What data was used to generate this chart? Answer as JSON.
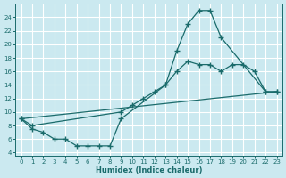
{
  "xlabel": "Humidex (Indice chaleur)",
  "bg_color": "#cbe9f0",
  "grid_color": "#ffffff",
  "line_color": "#1a6b6b",
  "x_ticks": [
    0,
    1,
    2,
    3,
    4,
    5,
    6,
    7,
    8,
    9,
    10,
    11,
    12,
    13,
    14,
    15,
    16,
    17,
    18,
    19,
    20,
    21,
    22,
    23
  ],
  "y_ticks": [
    4,
    6,
    8,
    10,
    12,
    14,
    16,
    18,
    20,
    22,
    24
  ],
  "ylim": [
    3.5,
    26.0
  ],
  "xlim": [
    -0.5,
    23.5
  ],
  "curve_top": {
    "x": [
      0,
      1,
      2,
      3,
      4,
      5,
      6,
      7,
      8,
      9,
      13,
      14,
      15,
      16,
      17,
      18,
      22,
      23
    ],
    "y": [
      9,
      7.5,
      7,
      6,
      6,
      5,
      5,
      5,
      5,
      9,
      14,
      19,
      23,
      25,
      25,
      21,
      13,
      13
    ]
  },
  "curve_mid": {
    "x": [
      0,
      1,
      9,
      10,
      11,
      12,
      13,
      14,
      15,
      16,
      17,
      18,
      19,
      20,
      21,
      22,
      23
    ],
    "y": [
      9,
      8,
      10,
      11,
      12,
      13,
      14,
      16,
      17.5,
      17,
      17,
      16,
      17,
      17,
      16,
      13,
      13
    ]
  },
  "curve_bot": {
    "x": [
      0,
      23
    ],
    "y": [
      9,
      13
    ]
  },
  "markers_top": {
    "x": [
      0,
      1,
      2,
      3,
      4,
      5,
      6,
      7,
      8,
      9,
      13,
      14,
      15,
      16,
      17,
      18,
      22,
      23
    ],
    "y": [
      9,
      7.5,
      7,
      6,
      6,
      5,
      5,
      5,
      5,
      9,
      14,
      19,
      23,
      25,
      25,
      21,
      13,
      13
    ]
  },
  "markers_mid": {
    "x": [
      0,
      1,
      9,
      10,
      11,
      12,
      13,
      14,
      15,
      16,
      17,
      18,
      19,
      20,
      21,
      22,
      23
    ],
    "y": [
      9,
      8,
      10,
      11,
      12,
      13,
      14,
      16,
      17.5,
      17,
      17,
      16,
      17,
      17,
      16,
      13,
      13
    ]
  }
}
